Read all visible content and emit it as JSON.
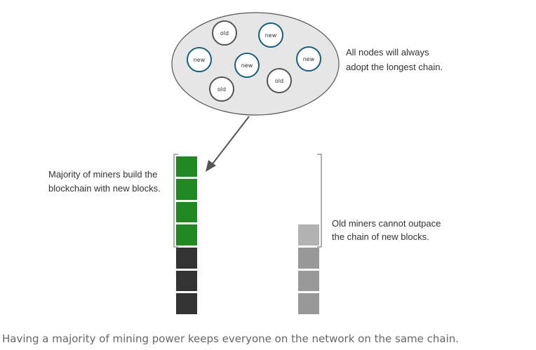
{
  "network": {
    "nodes": [
      {
        "label": "old",
        "type": "old"
      },
      {
        "label": "new",
        "type": "new"
      },
      {
        "label": "new",
        "type": "new"
      },
      {
        "label": "new",
        "type": "new"
      },
      {
        "label": "new",
        "type": "new"
      },
      {
        "label": "old",
        "type": "old"
      },
      {
        "label": "old",
        "type": "old"
      }
    ],
    "annotation_line1": "All nodes will always",
    "annotation_line2": "adopt the longest chain."
  },
  "majority_chain": {
    "annotation_line1": "Majority of miners build the",
    "annotation_line2": "blockchain with new blocks.",
    "new_blocks": 4,
    "old_blocks": 3
  },
  "minority_chain": {
    "annotation_line1": "Old miners cannot outpace",
    "annotation_line2": "the chain of new blocks.",
    "new_blocks": 1,
    "old_blocks": 3
  },
  "colors": {
    "new_node_stroke": "#1b5e7a",
    "old_node_stroke": "#555555",
    "ellipse_fill": "#e6e6e6",
    "new_block": "#228822",
    "old_block_majority": "#333333",
    "minority_new_block": "#b3b3b3",
    "minority_old_block": "#999999"
  },
  "caption": "Having a majority of mining power keeps everyone on the network on the same chain."
}
